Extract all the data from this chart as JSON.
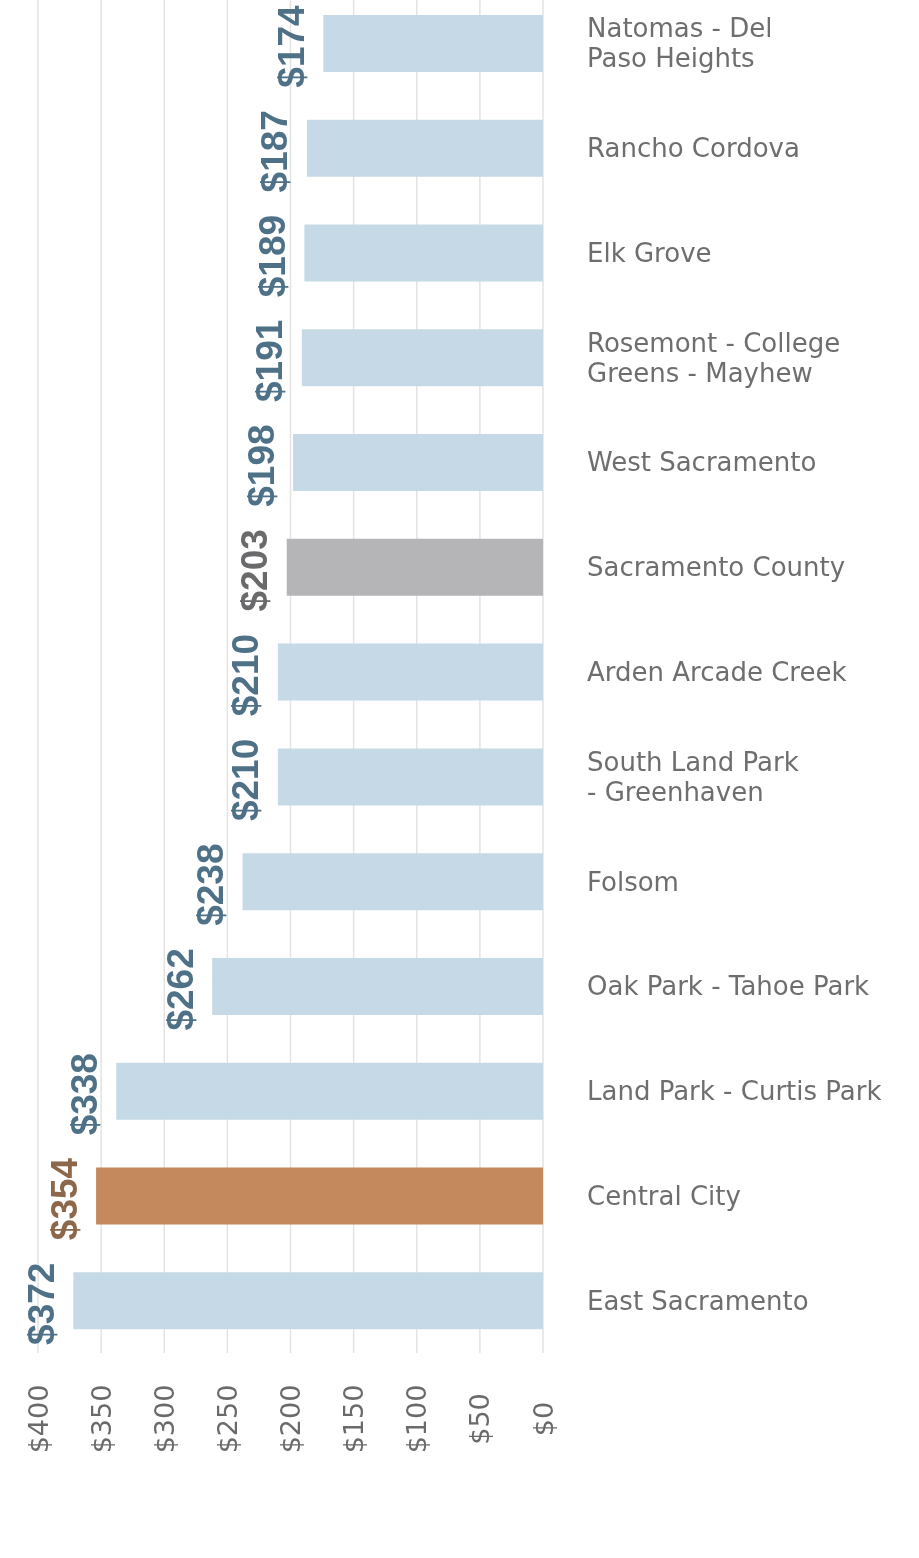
{
  "chart_data": {
    "type": "bar",
    "orientation": "horizontal",
    "categories": [
      "Natomas - Del Paso Heights",
      "Rancho Cordova",
      "Elk Grove",
      "Rosemont - College Greens - Mayhew",
      "West Sacramento",
      "Sacramento County",
      "Arden Arcade Creek",
      "South Land Park - Greenhaven",
      "Folsom",
      "Oak Park - Tahoe Park",
      "Land Park - Curtis Park",
      "Central City",
      "East Sacramento"
    ],
    "values": [
      174,
      187,
      189,
      191,
      198,
      203,
      210,
      210,
      238,
      262,
      338,
      354,
      372
    ],
    "colors": [
      "#c6d9e6",
      "#c6d9e6",
      "#c6d9e6",
      "#c6d9e6",
      "#c6d9e6",
      "#b5b5b7",
      "#c6d9e6",
      "#c6d9e6",
      "#c6d9e6",
      "#c6d9e6",
      "#c6d9e6",
      "#c48a5e",
      "#c6d9e6"
    ],
    "value_labels": [
      "$174",
      "$187",
      "$189",
      "$191",
      "$198",
      "$203",
      "$210",
      "$210",
      "$238",
      "$262",
      "$338",
      "$354",
      "$372"
    ],
    "xlim": [
      400,
      0
    ],
    "xticks": [
      {
        "value": 0,
        "label": "$0"
      },
      {
        "value": 50,
        "label": "$50"
      },
      {
        "value": 100,
        "label": "$100"
      },
      {
        "value": 150,
        "label": "$150"
      },
      {
        "value": 200,
        "label": "$200"
      },
      {
        "value": 250,
        "label": "$250"
      },
      {
        "value": 300,
        "label": "$300"
      },
      {
        "value": 350,
        "label": "$350"
      },
      {
        "value": 400,
        "label": "$400"
      }
    ],
    "grid": "x"
  }
}
